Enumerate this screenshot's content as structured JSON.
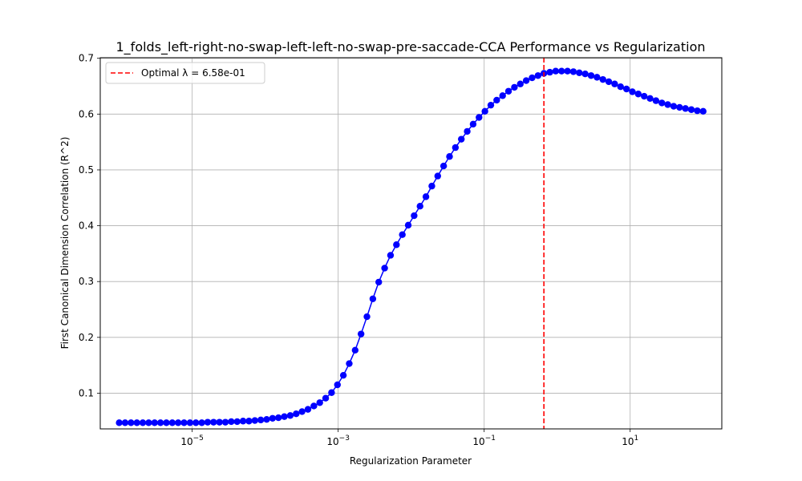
{
  "chart_data": {
    "type": "line",
    "title": "1_folds_left-right-no-swap-left-left-no-swap-pre-saccade-CCA Performance vs Regularization",
    "xlabel": "Regularization Parameter",
    "ylabel": "First Canonical Dimension Correlation (R^2)",
    "x_scale": "log",
    "xlim": [
      5.5e-07,
      180
    ],
    "ylim": [
      0.036,
      0.701
    ],
    "x_ticks": [
      1e-05,
      0.001,
      0.1,
      10
    ],
    "x_tick_labels": [
      {
        "base": "10",
        "exp": "−5"
      },
      {
        "base": "10",
        "exp": "−3"
      },
      {
        "base": "10",
        "exp": "−1"
      },
      {
        "base": "10",
        "exp": "1"
      }
    ],
    "y_ticks": [
      0.1,
      0.2,
      0.3,
      0.4,
      0.5,
      0.6,
      0.7
    ],
    "y_tick_labels": [
      "0.1",
      "0.2",
      "0.3",
      "0.4",
      "0.5",
      "0.6",
      "0.7"
    ],
    "grid": true,
    "legend_position": "top-left",
    "series": [
      {
        "color": "#0000ff",
        "marker": "circle",
        "x_log10_range": [
          -6,
          2
        ],
        "n_points": 100,
        "values": [
          0.047,
          0.047,
          0.047,
          0.047,
          0.047,
          0.047,
          0.047,
          0.047,
          0.047,
          0.047,
          0.047,
          0.047,
          0.047,
          0.047,
          0.047,
          0.048,
          0.048,
          0.048,
          0.048,
          0.049,
          0.049,
          0.05,
          0.05,
          0.051,
          0.052,
          0.053,
          0.055,
          0.056,
          0.058,
          0.06,
          0.063,
          0.067,
          0.071,
          0.077,
          0.083,
          0.091,
          0.101,
          0.115,
          0.132,
          0.153,
          0.177,
          0.206,
          0.237,
          0.269,
          0.299,
          0.324,
          0.347,
          0.366,
          0.384,
          0.401,
          0.418,
          0.435,
          0.452,
          0.471,
          0.489,
          0.507,
          0.524,
          0.54,
          0.555,
          0.569,
          0.582,
          0.594,
          0.605,
          0.616,
          0.625,
          0.633,
          0.641,
          0.648,
          0.654,
          0.66,
          0.665,
          0.669,
          0.673,
          0.675,
          0.677,
          0.677,
          0.677,
          0.676,
          0.674,
          0.672,
          0.669,
          0.666,
          0.662,
          0.658,
          0.654,
          0.649,
          0.645,
          0.64,
          0.636,
          0.632,
          0.628,
          0.624,
          0.62,
          0.617,
          0.614,
          0.612,
          0.61,
          0.608,
          0.606,
          0.605
        ]
      }
    ],
    "optimal_line": {
      "x": 0.658,
      "color": "#ff0000",
      "style": "dashed",
      "legend_label": "Optimal λ = 6.58e-01"
    }
  }
}
